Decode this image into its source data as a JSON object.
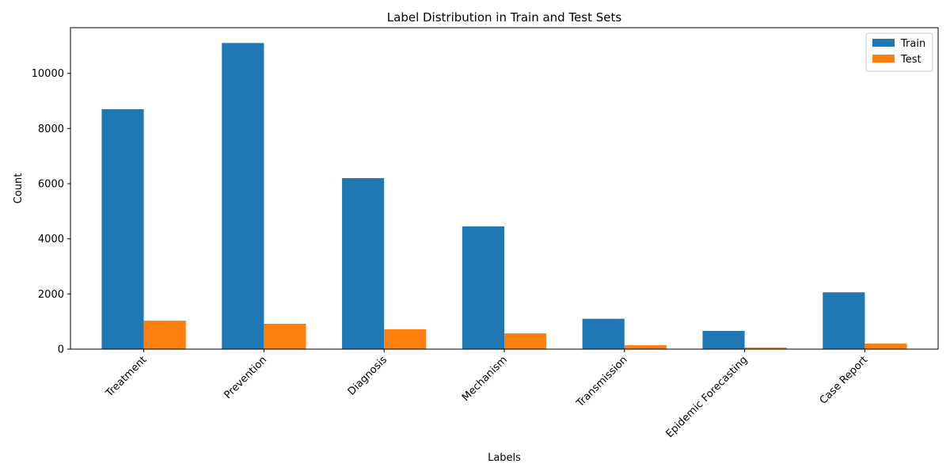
{
  "chart_data": {
    "type": "bar",
    "title": "Label Distribution in Train and Test Sets",
    "xlabel": "Labels",
    "ylabel": "Count",
    "categories": [
      "Treatment",
      "Prevention",
      "Diagnosis",
      "Mechanism",
      "Transmission",
      "Epidemic Forecasting",
      "Case Report"
    ],
    "series": [
      {
        "name": "Train",
        "color": "#1f77b4",
        "values": [
          8700,
          11100,
          6200,
          4450,
          1100,
          660,
          2060
        ]
      },
      {
        "name": "Test",
        "color": "#ff7f0e",
        "values": [
          1030,
          920,
          720,
          570,
          140,
          60,
          200
        ]
      }
    ],
    "ylim": [
      0,
      11655
    ],
    "yticks": [
      0,
      2000,
      4000,
      6000,
      8000,
      10000
    ],
    "ytick_labels": [
      "0",
      "2000",
      "4000",
      "6000",
      "8000",
      "10000"
    ],
    "xtick_rotation": 45,
    "legend_position": "top-right",
    "grid": false
  }
}
